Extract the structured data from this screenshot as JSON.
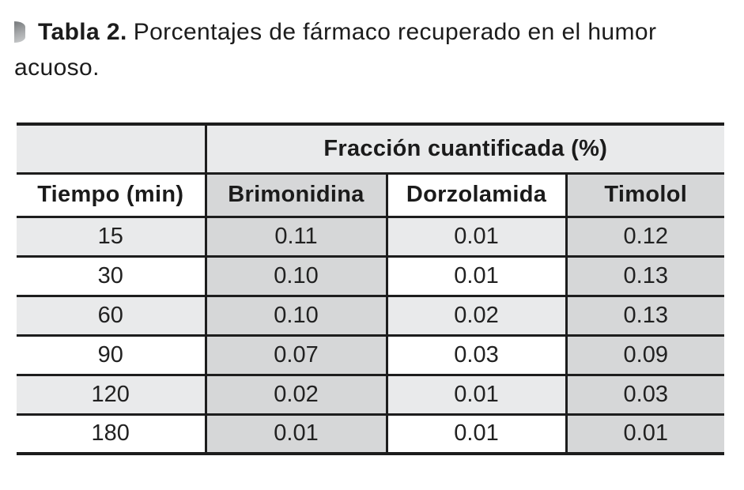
{
  "title": {
    "marker_icon": "half-circle-bullet",
    "bold": "Tabla 2.",
    "line1_rest": "Porcentajes de fármaco recuperado en el humor",
    "line2": "acuoso.",
    "full_text": "Tabla 2. Porcentajes de fármaco recuperado en el humor acuoso."
  },
  "table": {
    "group_header": "Fracción cuantificada (%)",
    "columns": [
      "Tiempo (min)",
      "Brimonidina",
      "Dorzolamida",
      "Timolol"
    ],
    "rows": [
      [
        "15",
        "0.11",
        "0.01",
        "0.12"
      ],
      [
        "30",
        "0.10",
        "0.01",
        "0.13"
      ],
      [
        "60",
        "0.10",
        "0.02",
        "0.13"
      ],
      [
        "90",
        "0.07",
        "0.03",
        "0.09"
      ],
      [
        "120",
        "0.02",
        "0.01",
        "0.03"
      ],
      [
        "180",
        "0.01",
        "0.01",
        "0.01"
      ]
    ]
  },
  "colors": {
    "row_stripe_light": "#e9eaeb",
    "column_shade_medium": "#d6d7d8",
    "rule_black": "#1d1d1d",
    "text": "#1a1a1a",
    "bullet_gray": "#9a9d9f"
  },
  "chart_data": {
    "type": "table",
    "title": "Tabla 2. Porcentajes de fármaco recuperado en el humor acuoso.",
    "group_header": "Fracción cuantificada (%)",
    "x_label": "Tiempo (min)",
    "categories": [
      15,
      30,
      60,
      90,
      120,
      180
    ],
    "series": [
      {
        "name": "Brimonidina",
        "values": [
          0.11,
          0.1,
          0.1,
          0.07,
          0.02,
          0.01
        ]
      },
      {
        "name": "Dorzolamida",
        "values": [
          0.01,
          0.01,
          0.02,
          0.03,
          0.01,
          0.01
        ]
      },
      {
        "name": "Timolol",
        "values": [
          0.12,
          0.13,
          0.13,
          0.09,
          0.03,
          0.01
        ]
      }
    ]
  }
}
